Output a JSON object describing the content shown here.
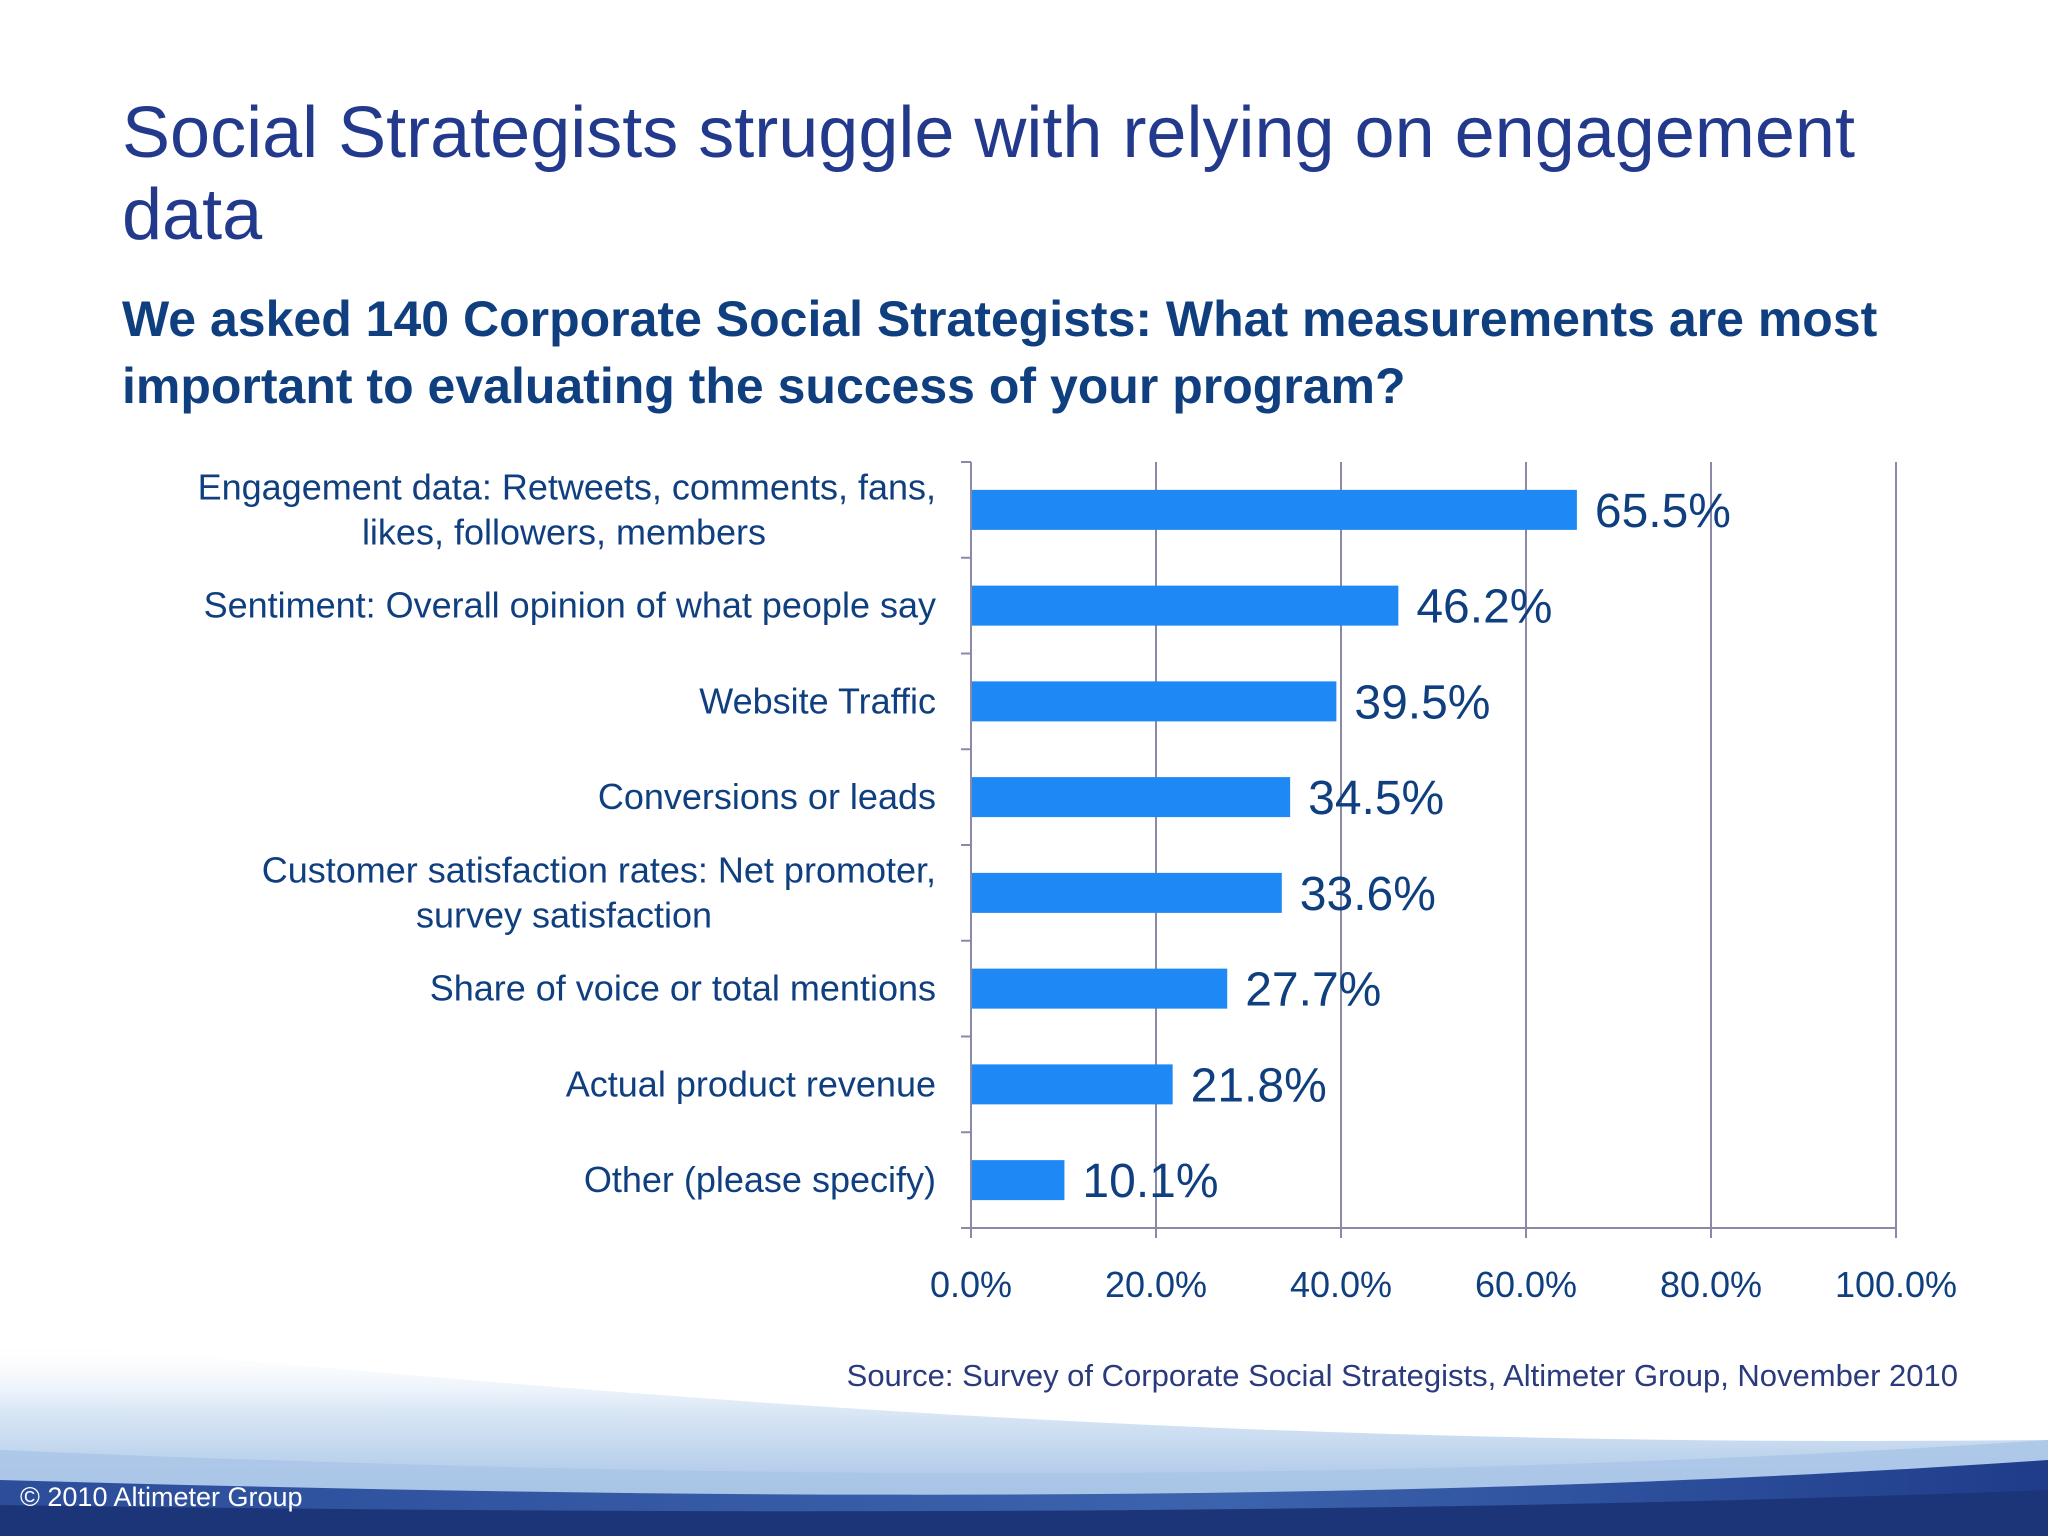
{
  "slide": {
    "title": "Social Strategists struggle with relying on engagement data",
    "subtitle": "We asked 140 Corporate Social Strategists: What measurements are most important to evaluating the success of your program?",
    "source": "Source: Survey of Corporate Social Strategists, Altimeter Group, November 2010",
    "copyright": "© 2010 Altimeter Group"
  },
  "colors": {
    "title": "#233a8c",
    "text": "#103f80",
    "bar": "#1e88f5",
    "grid": "#8a8aa8",
    "footer_dark": "#1f3c8a",
    "footer_light": "#cfe0f4"
  },
  "chart_data": {
    "type": "bar",
    "orientation": "horizontal",
    "categories": [
      [
        "Engagement data: Retweets, comments, fans,",
        "likes, followers, members"
      ],
      [
        "Sentiment: Overall opinion of what people say"
      ],
      [
        "Website Traffic"
      ],
      [
        "Conversions or leads"
      ],
      [
        "Customer satisfaction rates: Net promoter,",
        "survey satisfaction"
      ],
      [
        "Share of voice or total mentions"
      ],
      [
        "Actual product revenue"
      ],
      [
        "Other (please specify)"
      ]
    ],
    "values": [
      65.5,
      46.2,
      39.5,
      34.5,
      33.6,
      27.7,
      21.8,
      10.1
    ],
    "value_labels": [
      "65.5%",
      "46.2%",
      "39.5%",
      "34.5%",
      "33.6%",
      "27.7%",
      "21.8%",
      "10.1%"
    ],
    "xlim": [
      0,
      100
    ],
    "xticks": [
      0,
      20,
      40,
      60,
      80,
      100
    ],
    "xtick_labels": [
      "0.0%",
      "20.0%",
      "40.0%",
      "60.0%",
      "80.0%",
      "100.0%"
    ],
    "grid": true,
    "legend": "none"
  }
}
